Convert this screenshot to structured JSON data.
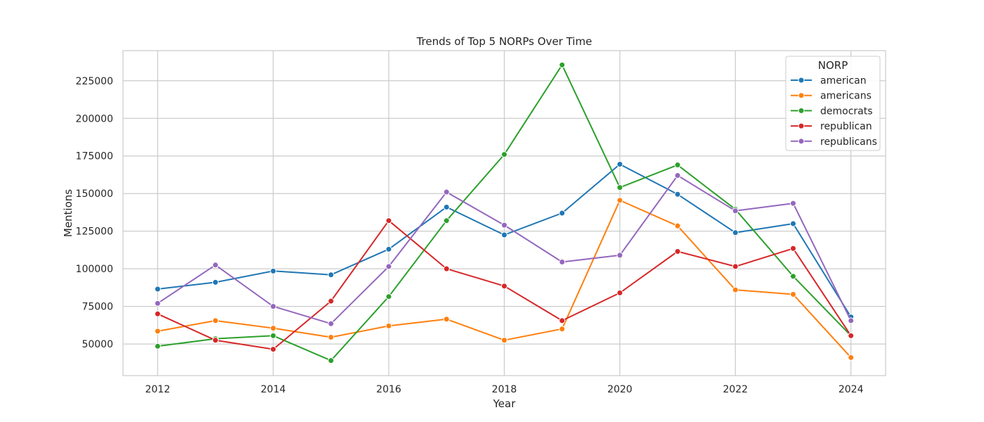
{
  "chart_data": {
    "type": "line",
    "title": "Trends of Top 5 NORPs Over Time",
    "xlabel": "Year",
    "ylabel": "Mentions",
    "x": [
      2012,
      2013,
      2014,
      2015,
      2016,
      2017,
      2018,
      2019,
      2020,
      2021,
      2022,
      2023,
      2024
    ],
    "xticks": [
      "2012",
      "2014",
      "2016",
      "2018",
      "2020",
      "2022",
      "2024"
    ],
    "yticks": [
      "50000",
      "75000",
      "100000",
      "125000",
      "150000",
      "175000",
      "200000",
      "225000"
    ],
    "xlim": [
      2011.4,
      2024.6
    ],
    "ylim": [
      29000,
      245000
    ],
    "grid": true,
    "legend": {
      "title": "NORP",
      "position": "top-right"
    },
    "series": [
      {
        "name": "american",
        "color": "#1f77b4",
        "values": [
          86500,
          91000,
          98500,
          96000,
          113000,
          141000,
          122500,
          137000,
          169500,
          149500,
          124000,
          130000,
          68000
        ]
      },
      {
        "name": "americans",
        "color": "#ff7f0e",
        "values": [
          58500,
          65500,
          60500,
          54500,
          62000,
          66500,
          52500,
          60000,
          145500,
          128500,
          86000,
          83000,
          41000
        ]
      },
      {
        "name": "democrats",
        "color": "#2ca02c",
        "values": [
          48500,
          53500,
          55500,
          39000,
          81500,
          132000,
          176000,
          235500,
          154000,
          169000,
          139500,
          95000,
          55500
        ]
      },
      {
        "name": "republican",
        "color": "#d62728",
        "values": [
          70000,
          52500,
          46500,
          78500,
          132000,
          100000,
          88500,
          65500,
          84000,
          111500,
          101500,
          113500,
          55500
        ]
      },
      {
        "name": "republicans",
        "color": "#9467bd",
        "values": [
          77000,
          102500,
          75000,
          63500,
          101500,
          151000,
          129000,
          104500,
          109000,
          162000,
          138500,
          143500,
          65500
        ]
      }
    ]
  }
}
